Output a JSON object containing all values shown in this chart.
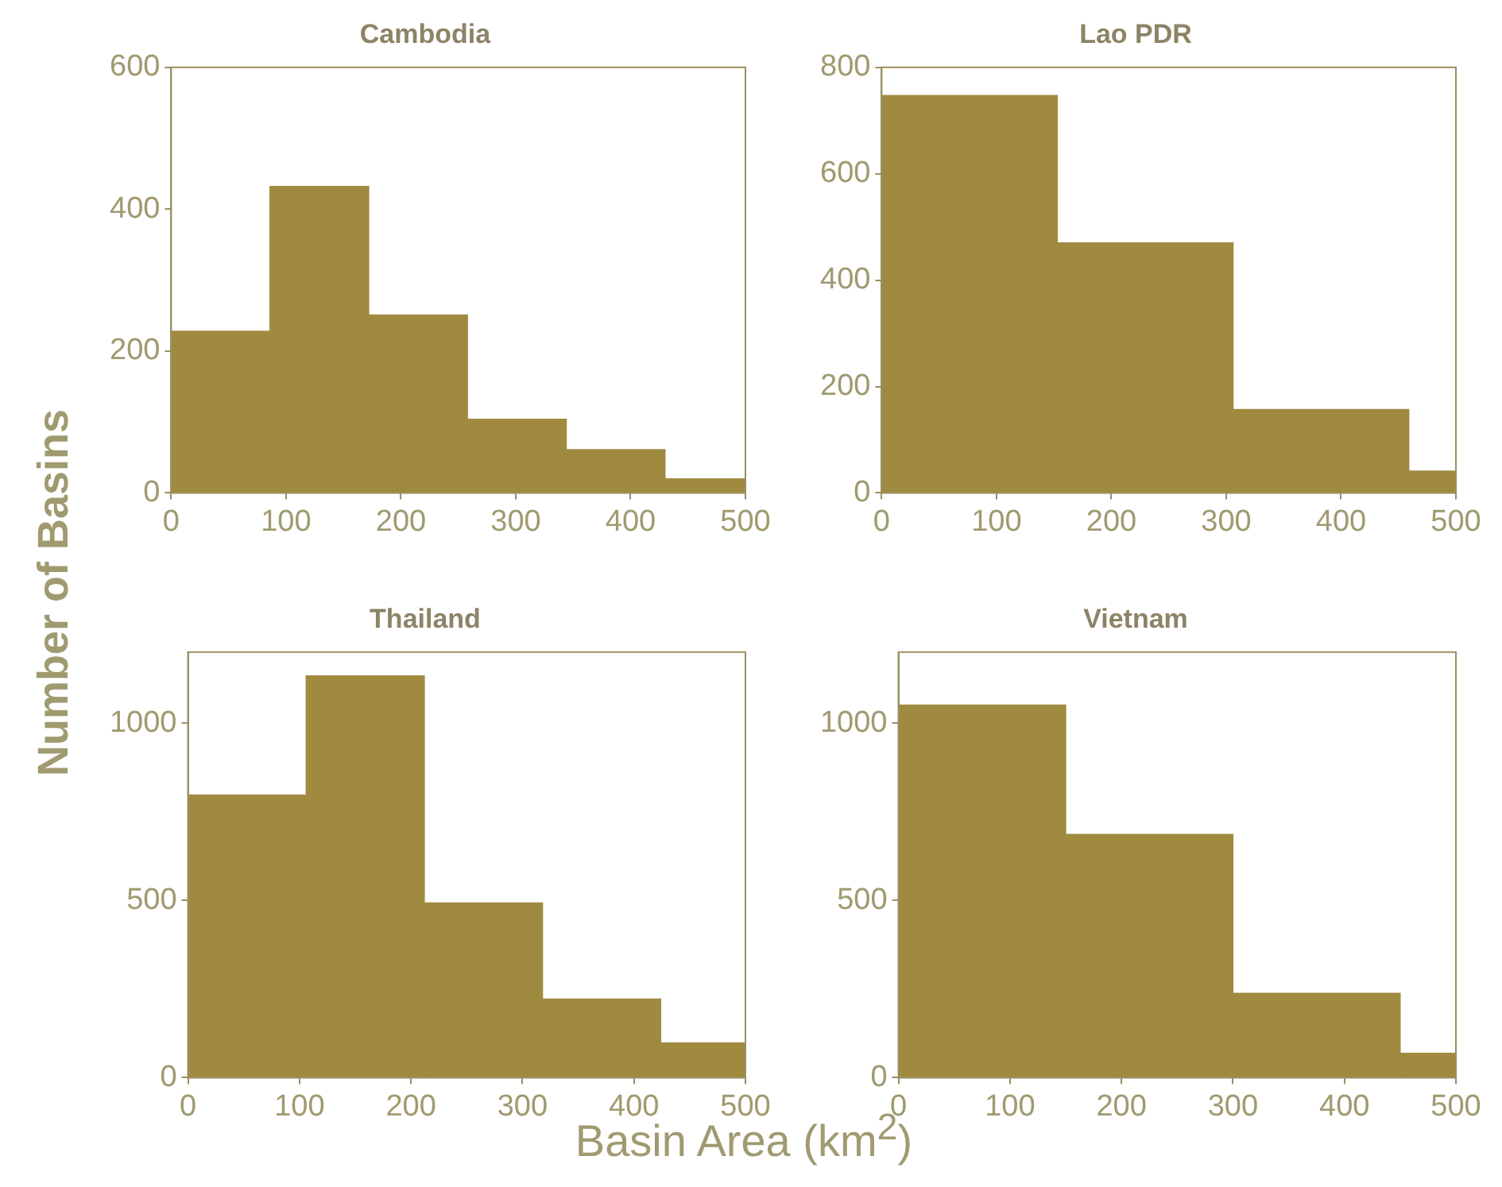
{
  "chart_data": [
    {
      "type": "histogram",
      "title": "Cambodia",
      "ylabel": "Number of Basins",
      "bins": [
        0,
        86,
        172,
        258,
        344,
        430,
        500
      ],
      "values": [
        228,
        432,
        251,
        104,
        61,
        20
      ],
      "color": "#a08a40",
      "xlim": [
        0,
        500
      ],
      "xticks": [
        0,
        100,
        200,
        300,
        400,
        500
      ],
      "ylim": [
        0,
        600
      ],
      "yticks": [
        0,
        200,
        400,
        600
      ],
      "grid": false
    },
    {
      "type": "histogram",
      "title": "Lao PDR",
      "bins": [
        0,
        153,
        306,
        459,
        500
      ],
      "values": [
        747,
        470,
        157,
        41
      ],
      "color": "#a08a40",
      "xlim": [
        0,
        500
      ],
      "xticks": [
        0,
        100,
        200,
        300,
        400,
        500
      ],
      "ylim": [
        0,
        800
      ],
      "yticks": [
        0,
        200,
        400,
        600,
        800
      ],
      "grid": false
    },
    {
      "type": "histogram",
      "title": "Thailand",
      "xlabel": "Basin Area (km$^{2}$)",
      "bins": [
        0,
        106,
        212,
        318,
        424,
        500
      ],
      "values": [
        797,
        1133,
        493,
        222,
        98
      ],
      "color": "#a08a40",
      "xlim": [
        0,
        500
      ],
      "xticks": [
        0,
        100,
        200,
        300,
        400,
        500
      ],
      "ylim": [
        0,
        1200
      ],
      "yticks": [
        0,
        500,
        1000
      ],
      "grid": false
    },
    {
      "type": "histogram",
      "title": "Vietnam",
      "bins": [
        0,
        150,
        300,
        450,
        500
      ],
      "values": [
        1051,
        686,
        238,
        69
      ],
      "color": "#a08a40",
      "xlim": [
        0,
        500
      ],
      "xticks": [
        0,
        100,
        200,
        300,
        400,
        500
      ],
      "ylim": [
        0,
        1200
      ],
      "yticks": [
        0,
        500,
        1000
      ],
      "grid": false
    }
  ]
}
